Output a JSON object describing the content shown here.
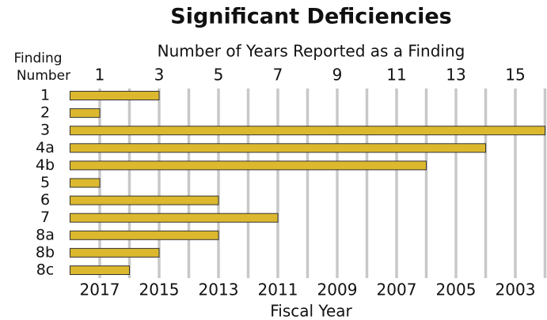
{
  "chart_data": {
    "type": "bar",
    "orientation": "horizontal",
    "title": "Significant Deficiencies",
    "category_header": [
      "Finding",
      "Number"
    ],
    "x_label_top": "Number of Years Reported as a Finding",
    "x_label_bottom": "Fiscal Year",
    "categories": [
      "1",
      "2",
      "3",
      "4a",
      "4b",
      "5",
      "6",
      "7",
      "8a",
      "8b",
      "8c"
    ],
    "values": [
      3,
      1,
      16,
      14,
      12,
      1,
      5,
      7,
      5,
      3,
      2
    ],
    "color": "#dcb82e",
    "xlim": [
      0,
      16
    ],
    "xticks": [
      1,
      3,
      5,
      7,
      9,
      11,
      13,
      15
    ],
    "x2ticks": [
      {
        "value": 1,
        "label": "2017"
      },
      {
        "value": 3,
        "label": "2015"
      },
      {
        "value": 5,
        "label": "2013"
      },
      {
        "value": 7,
        "label": "2011"
      },
      {
        "value": 9,
        "label": "2009"
      },
      {
        "value": 11,
        "label": "2007"
      },
      {
        "value": 13,
        "label": "2005"
      },
      {
        "value": 15,
        "label": "2003"
      }
    ],
    "gridlines": [
      1,
      2,
      3,
      4,
      5,
      6,
      7,
      8,
      9,
      10,
      11,
      12,
      13,
      14,
      15,
      16
    ],
    "grid": true
  }
}
